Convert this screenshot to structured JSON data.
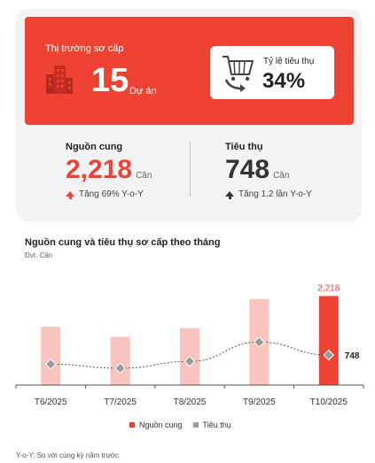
{
  "summary": {
    "hero_label": "Thị trường sơ cấp",
    "project_count": "15",
    "project_unit": "Dự án",
    "absorption_label": "Tỷ lệ tiêu thụ",
    "absorption_value": "34%",
    "supply": {
      "label": "Nguồn cung",
      "value": "2,218",
      "unit": "Căn",
      "delta": "Tăng 69% Y-o-Y"
    },
    "sales": {
      "label": "Tiêu thụ",
      "value": "748",
      "unit": "Căn",
      "delta": "Tăng 1.2 lần Y-o-Y"
    }
  },
  "colors": {
    "accent": "#ee4232",
    "supply_light": "#f9c4bd",
    "sales_marker": "#9b9b9b",
    "card_bg": "#f2f3f5"
  },
  "icons": {
    "hero": "building-icon",
    "absorption": "shopping-cart-icon"
  },
  "chart_data": {
    "type": "bar",
    "title": "Nguồn cung và tiêu thụ sơ cấp theo tháng",
    "unit_label": "Đvt: Căn",
    "categories": [
      "T6/2025",
      "T7/2025",
      "T8/2025",
      "T9/2025",
      "T10/2025"
    ],
    "series": [
      {
        "name": "Nguồn cung",
        "kind": "bar",
        "values": [
          1450,
          1200,
          1420,
          2140,
          2218
        ]
      },
      {
        "name": "Tiêu thụ",
        "kind": "line",
        "values": [
          520,
          420,
          590,
          1070,
          748
        ]
      }
    ],
    "value_labels": {
      "supply_last": "2,218",
      "sales_last": "748"
    },
    "ylim": [
      0,
      2600
    ],
    "grid": false,
    "legend_position": "bottom"
  },
  "footnote": "Y-o-Y: So với cùng kỳ năm trước"
}
